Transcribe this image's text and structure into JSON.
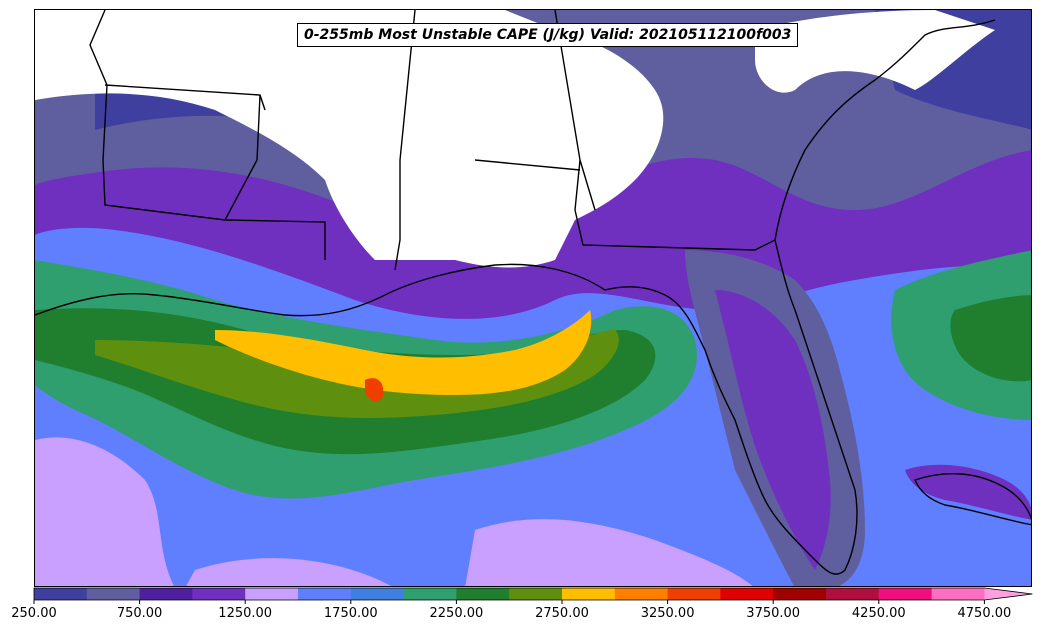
{
  "title": "0-255mb Most Unstable CAPE (J/kg) Valid: 202105112100f003",
  "colorbar": {
    "colors": [
      "#3f3f9f",
      "#5f5f9f",
      "#4f1f9f",
      "#6f2fbf",
      "#c99fff",
      "#5f7fff",
      "#3f7fdf",
      "#2f9f6f",
      "#1f7f2f",
      "#5f8f0f",
      "#ffbf00",
      "#ff7f00",
      "#ef3f00",
      "#df0000",
      "#9f0000",
      "#af0f3f",
      "#ef0f7f",
      "#ff6fbf"
    ],
    "extend_color": "#ff9fdf",
    "tick_labels": [
      "250.00",
      "750.00",
      "1250.00",
      "1750.00",
      "2250.00",
      "2750.00",
      "3250.00",
      "3750.00",
      "4250.00",
      "4750.00"
    ]
  }
}
